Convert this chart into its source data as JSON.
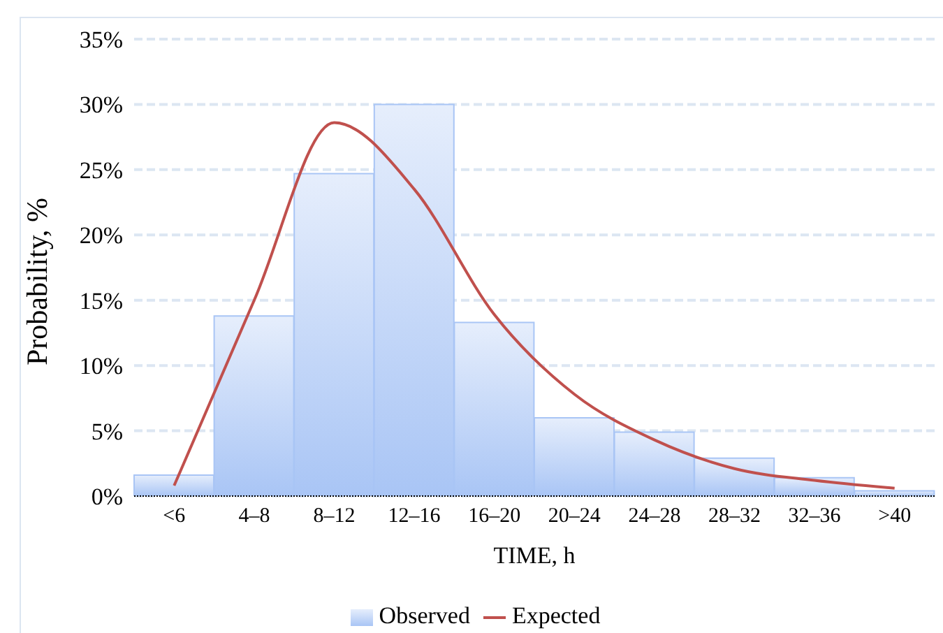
{
  "chart_data": {
    "type": "bar",
    "xlabel": "TIME, h",
    "ylabel": "Probability, %",
    "categories": [
      "<6",
      "4–8",
      "8–12",
      "12–16",
      "16–20",
      "20–24",
      "24–28",
      "28–32",
      "32–36",
      ">40"
    ],
    "series": [
      {
        "name": "Observed",
        "color": "#a9c5f5",
        "values": [
          1.6,
          13.8,
          24.7,
          30.0,
          13.3,
          6.0,
          4.9,
          2.9,
          1.4,
          0.4
        ]
      },
      {
        "name": "Expected",
        "type": "line",
        "color": "#c0504d",
        "values": [
          0.8,
          15.0,
          28.6,
          23.5,
          13.9,
          7.8,
          4.3,
          2.1,
          1.2,
          0.6
        ]
      }
    ],
    "ylim": [
      0,
      35
    ],
    "yticks": [
      {
        "value": 0,
        "label": "0%"
      },
      {
        "value": 5,
        "label": "5%"
      },
      {
        "value": 10,
        "label": "10%"
      },
      {
        "value": 15,
        "label": "15%"
      },
      {
        "value": 20,
        "label": "20%"
      },
      {
        "value": 25,
        "label": "25%"
      },
      {
        "value": 30,
        "label": "30%"
      },
      {
        "value": 35,
        "label": "35%"
      }
    ],
    "grid": "y",
    "legend": "bottom",
    "marker": "none",
    "line_style": "solid"
  }
}
